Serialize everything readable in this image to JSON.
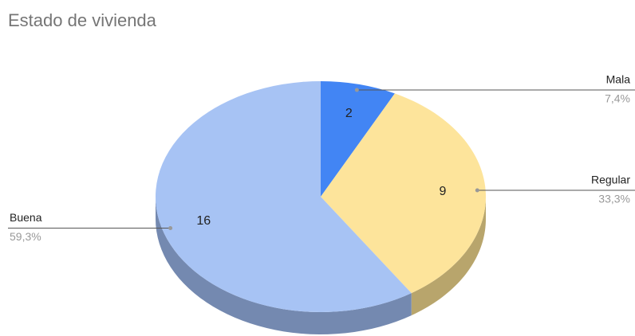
{
  "chart_data": {
    "type": "pie",
    "title": "Estado de vivienda",
    "categories": [
      "Mala",
      "Regular",
      "Buena"
    ],
    "values": [
      2,
      9,
      16
    ],
    "percent_labels": [
      "7,4%",
      "33,3%",
      "59,3%"
    ],
    "colors": [
      "#4285f4",
      "#fde49b",
      "#a7c3f4"
    ],
    "side_colors": [
      "#2f64bf",
      "#b8a56c",
      "#7489b0"
    ],
    "three_d": true
  }
}
